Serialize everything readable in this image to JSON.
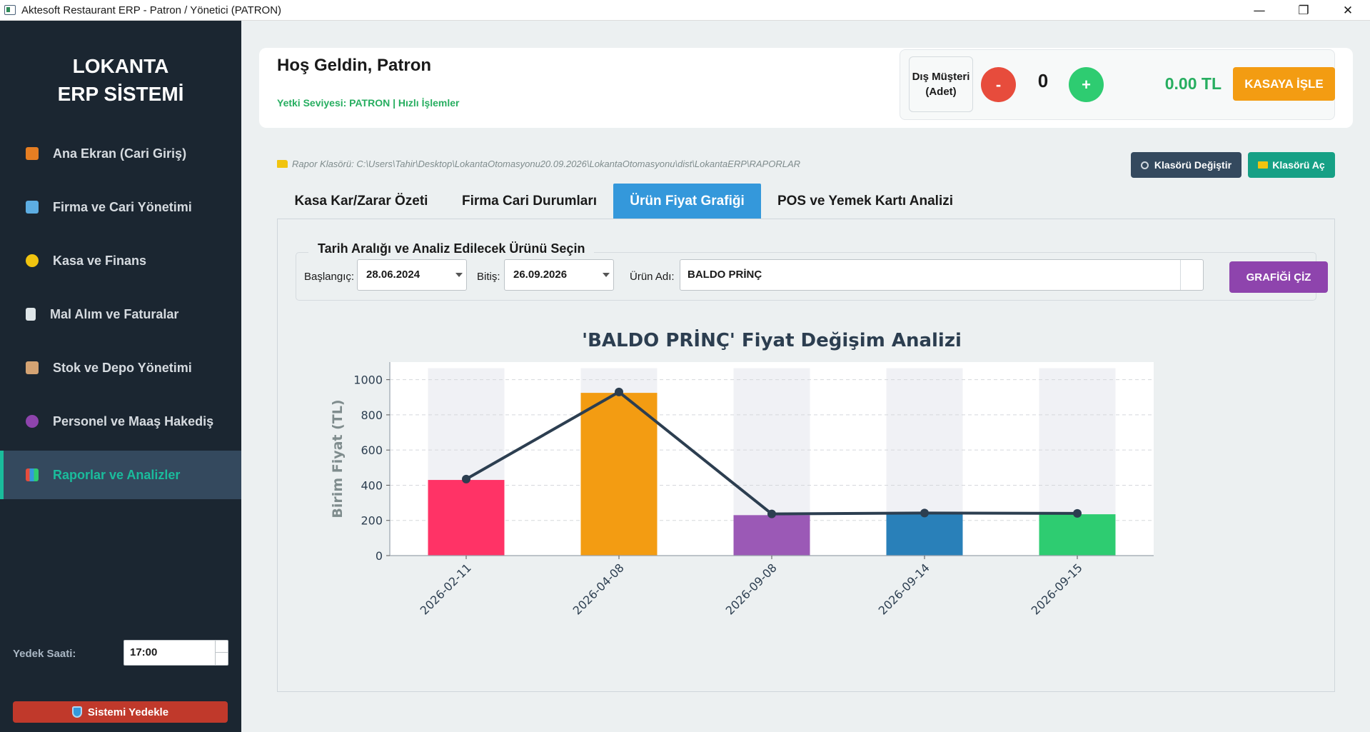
{
  "window": {
    "title": "Aktesoft Restaurant ERP - Patron / Yönetici (PATRON)",
    "minimize": "—",
    "restore": "❐",
    "close": "✕"
  },
  "sidebar": {
    "brand_line1": "LOKANTA",
    "brand_line2": "ERP SİSTEMİ",
    "items": [
      {
        "label": "Ana Ekran (Cari Giriş)",
        "icon": "house-icon",
        "color": "#e67e22"
      },
      {
        "label": "Firma ve Cari Yönetimi",
        "icon": "building-icon",
        "color": "#5dade2"
      },
      {
        "label": "Kasa ve Finans",
        "icon": "money-bag-icon",
        "color": "#f1c40f"
      },
      {
        "label": "Mal Alım ve Faturalar",
        "icon": "receipt-icon",
        "color": "#dfe6e9"
      },
      {
        "label": "Stok ve Depo Yönetimi",
        "icon": "package-icon",
        "color": "#d4a373"
      },
      {
        "label": "Personel ve Maaş Hakediş",
        "icon": "people-icon",
        "color": "#8e44ad"
      },
      {
        "label": "Raporlar ve Analizler",
        "icon": "bar-chart-icon",
        "color": "#ecf0f1"
      }
    ],
    "active_index": 6,
    "backup_label": "Yedek Saati:",
    "backup_time": "17:00",
    "backup_button": "Sistemi Yedekle"
  },
  "header": {
    "welcome": "Hoş Geldin, Patron",
    "permission": "Yetki Seviyesi: PATRON | Hızlı İşlemler",
    "walkin_label_line1": "Dış Müşteri",
    "walkin_label_line2": "(Adet)",
    "minus": "-",
    "quantity": "0",
    "plus": "+",
    "total": "0.00 TL",
    "cash_button": "KASAYA İŞLE"
  },
  "reports": {
    "folder_path": "Rapor Klasörü: C:\\Users\\Tahir\\Desktop\\LokantaOtomasyonu20.09.2026\\LokantaOtomasyonu\\dist\\LokantaERP\\RAPORLAR",
    "change_folder": "Klasörü Değiştir",
    "open_folder": "Klasörü Aç"
  },
  "tabs": [
    {
      "label": "Kasa Kar/Zarar Özeti"
    },
    {
      "label": "Firma Cari Durumları"
    },
    {
      "label": "Ürün Fiyat Grafiği"
    },
    {
      "label": "POS ve Yemek Kartı Analizi"
    }
  ],
  "active_tab": 2,
  "filter": {
    "group_title": "Tarih Aralığı ve Analiz Edilecek Ürünü Seçin",
    "start_label": "Başlangıç:",
    "start_value": "28.06.2024",
    "end_label": "Bitiş:",
    "end_value": "26.09.2026",
    "product_label": "Ürün Adı:",
    "product_value": "BALDO PRİNÇ",
    "draw_button": "GRAFİĞİ ÇİZ"
  },
  "chart_data": {
    "type": "bar",
    "title": "'BALDO PRİNÇ' Fiyat Değişim Analizi",
    "ylabel": "Birim Fiyat (TL)",
    "xlabel": "",
    "categories": [
      "2026-02-11",
      "2026-04-08",
      "2026-09-08",
      "2026-09-14",
      "2026-09-15"
    ],
    "values": [
      430,
      925,
      230,
      240,
      235
    ],
    "line_values": [
      435,
      930,
      237,
      242,
      240
    ],
    "bar_colors": [
      "#ff3366",
      "#f39c12",
      "#9b59b6",
      "#2980b9",
      "#2ecc71"
    ],
    "line_color": "#2c3e50",
    "ylim": [
      0,
      1100
    ],
    "yticks": [
      0,
      200,
      400,
      600,
      800,
      1000
    ],
    "grid": true,
    "legend": "none"
  }
}
